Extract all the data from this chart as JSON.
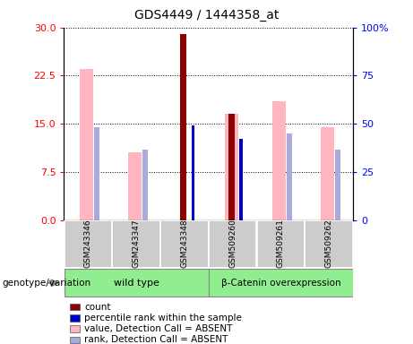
{
  "title": "GDS4449 / 1444358_at",
  "samples": [
    "GSM243346",
    "GSM243347",
    "GSM243348",
    "GSM509260",
    "GSM509261",
    "GSM509262"
  ],
  "count": [
    null,
    null,
    29.0,
    16.5,
    null,
    null
  ],
  "percentile_rank": [
    null,
    null,
    14.7,
    12.7,
    null,
    null
  ],
  "value_absent": [
    23.5,
    10.5,
    null,
    16.5,
    18.5,
    14.5
  ],
  "rank_absent": [
    14.5,
    11.0,
    null,
    null,
    13.5,
    11.0
  ],
  "ylim_left": [
    0,
    30
  ],
  "ylim_right": [
    0,
    100
  ],
  "yticks_left": [
    0,
    7.5,
    15,
    22.5,
    30
  ],
  "yticks_right": [
    0,
    25,
    50,
    75,
    100
  ],
  "count_color": "#8B0000",
  "percentile_color": "#0000CD",
  "value_absent_color": "#FFB6C1",
  "rank_absent_color": "#AAAADD",
  "group_color": "#90EE90",
  "sample_box_color": "#cccccc",
  "group1_label": "wild type",
  "group2_label": "β-Catenin overexpression",
  "geno_label": "genotype/variation",
  "legend_items": [
    {
      "color": "#8B0000",
      "label": "count"
    },
    {
      "color": "#0000CD",
      "label": "percentile rank within the sample"
    },
    {
      "color": "#FFB6C1",
      "label": "value, Detection Call = ABSENT"
    },
    {
      "color": "#AAAADD",
      "label": "rank, Detection Call = ABSENT"
    }
  ]
}
